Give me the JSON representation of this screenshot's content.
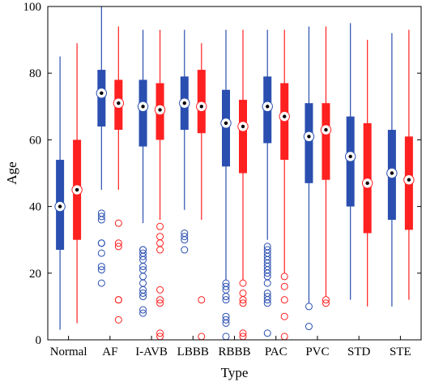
{
  "chart_data": {
    "type": "box",
    "xlabel": "Type",
    "ylabel": "Age",
    "ylim": [
      0,
      100
    ],
    "yticks": [
      0,
      20,
      40,
      60,
      80,
      100
    ],
    "categories": [
      "Normal",
      "AF",
      "I-AVB",
      "LBBB",
      "RBBB",
      "PAC",
      "PVC",
      "STD",
      "STE"
    ],
    "grid": false,
    "legend": "none",
    "series": [
      {
        "color": "#2a4fb0",
        "boxes": [
          {
            "whisker_low": 3,
            "q1": 27,
            "median": 40,
            "q3": 54,
            "whisker_high": 85,
            "outliers": []
          },
          {
            "whisker_low": 45,
            "q1": 64,
            "median": 74,
            "q3": 81,
            "whisker_high": 100,
            "outliers": [
              38,
              37,
              36,
              29,
              29,
              26,
              22,
              21,
              17
            ]
          },
          {
            "whisker_low": 35,
            "q1": 58,
            "median": 70,
            "q3": 78,
            "whisker_high": 93,
            "outliers": [
              27,
              27,
              26,
              25,
              24,
              22,
              21,
              19,
              17,
              15,
              14,
              13,
              9,
              8
            ]
          },
          {
            "whisker_low": 39,
            "q1": 63,
            "median": 71,
            "q3": 79,
            "whisker_high": 93,
            "outliers": [
              32,
              31,
              30,
              27
            ]
          },
          {
            "whisker_low": 18,
            "q1": 52,
            "median": 65,
            "q3": 75,
            "whisker_high": 93,
            "outliers": [
              17,
              16,
              15,
              13,
              12,
              7,
              6,
              5,
              1
            ]
          },
          {
            "whisker_low": 30,
            "q1": 59,
            "median": 70,
            "q3": 79,
            "whisker_high": 93,
            "outliers": [
              28,
              27,
              26,
              25,
              24,
              23,
              22,
              21,
              20,
              19,
              17,
              14,
              13,
              12,
              11,
              2
            ]
          },
          {
            "whisker_low": 11,
            "q1": 47,
            "median": 61,
            "q3": 71,
            "whisker_high": 94,
            "outliers": [
              10,
              4
            ]
          },
          {
            "whisker_low": 12,
            "q1": 40,
            "median": 55,
            "q3": 67,
            "whisker_high": 95,
            "outliers": []
          },
          {
            "whisker_low": 10,
            "q1": 36,
            "median": 50,
            "q3": 63,
            "whisker_high": 92,
            "outliers": []
          }
        ]
      },
      {
        "color": "#ff2020",
        "boxes": [
          {
            "whisker_low": 5,
            "q1": 30,
            "median": 45,
            "q3": 60,
            "whisker_high": 89,
            "outliers": []
          },
          {
            "whisker_low": 45,
            "q1": 63,
            "median": 71,
            "q3": 78,
            "whisker_high": 94,
            "outliers": [
              35,
              29,
              28,
              12,
              12,
              6
            ]
          },
          {
            "whisker_low": 36,
            "q1": 60,
            "median": 69,
            "q3": 77,
            "whisker_high": 93,
            "outliers": [
              34,
              31,
              29,
              27,
              15,
              12,
              11,
              2,
              1
            ]
          },
          {
            "whisker_low": 36,
            "q1": 62,
            "median": 70,
            "q3": 81,
            "whisker_high": 89,
            "outliers": [
              12,
              1
            ]
          },
          {
            "whisker_low": 18,
            "q1": 50,
            "median": 64,
            "q3": 72,
            "whisker_high": 93,
            "outliers": [
              17,
              14,
              12,
              11,
              2,
              1
            ]
          },
          {
            "whisker_low": 20,
            "q1": 54,
            "median": 67,
            "q3": 77,
            "whisker_high": 93,
            "outliers": [
              19,
              16,
              12,
              7,
              1
            ]
          },
          {
            "whisker_low": 13,
            "q1": 48,
            "median": 63,
            "q3": 71,
            "whisker_high": 94,
            "outliers": [
              12,
              11
            ]
          },
          {
            "whisker_low": 10,
            "q1": 32,
            "median": 47,
            "q3": 65,
            "whisker_high": 90,
            "outliers": []
          },
          {
            "whisker_low": 12,
            "q1": 33,
            "median": 48,
            "q3": 61,
            "whisker_high": 93,
            "outliers": []
          }
        ]
      }
    ]
  }
}
